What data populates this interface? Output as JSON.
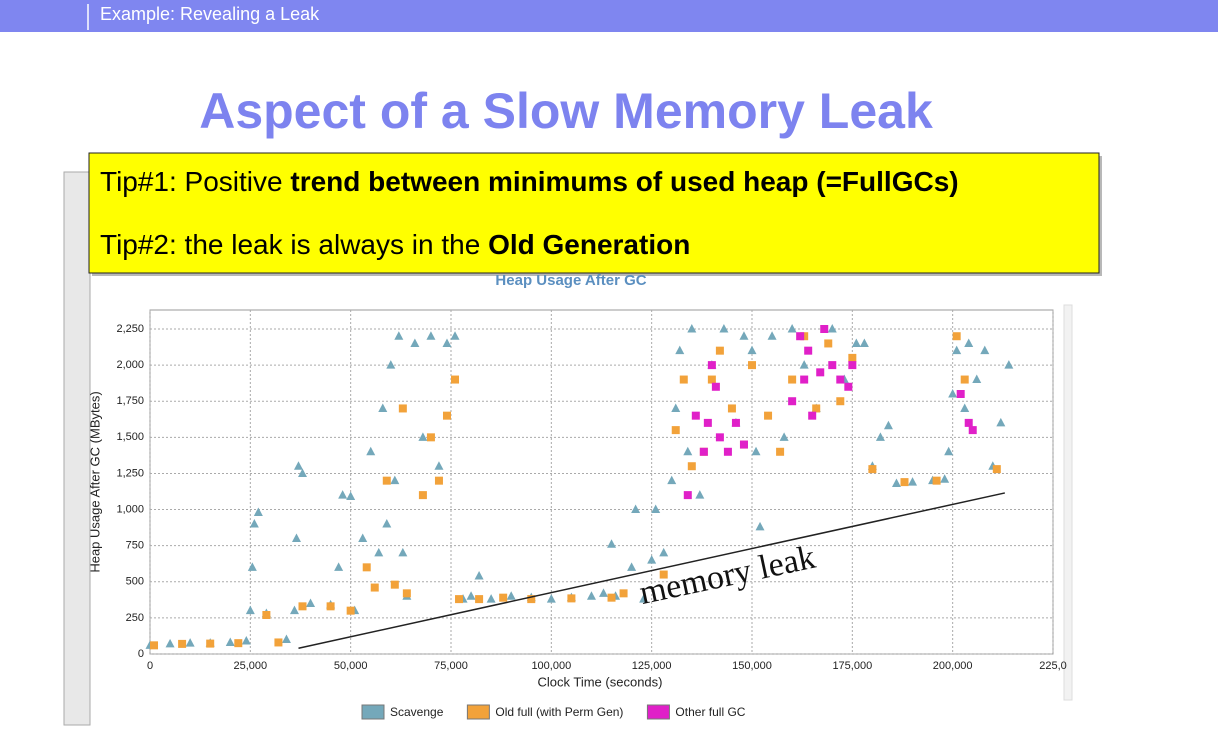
{
  "header": {
    "title": "Example: Revealing a Leak"
  },
  "slide_title": "Aspect of a Slow Memory Leak",
  "tips": [
    [
      {
        "text": "Tip#1: Positive ",
        "bold": false
      },
      {
        "text": "trend between minimums of used heap (=FullGCs)",
        "bold": true
      }
    ],
    [
      {
        "text": "Tip#2: the leak is always in the ",
        "bold": false
      },
      {
        "text": "Old Generation",
        "bold": true
      }
    ]
  ],
  "chart_data": {
    "type": "scatter",
    "title": "Heap Usage After GC",
    "x_label": "Clock Time (seconds)",
    "y_label": "Heap Usage After GC (MBytes)",
    "xlim": [
      0,
      225000
    ],
    "ylim": [
      0,
      2250
    ],
    "xticks": [
      0,
      {
        "value": 25000,
        "label": "25,000"
      },
      {
        "value": 50000,
        "label": "50,000"
      },
      {
        "value": 75000,
        "label": "75,000"
      },
      {
        "value": 100000,
        "label": "100,000"
      },
      {
        "value": 125000,
        "label": "125,000"
      },
      {
        "value": 150000,
        "label": "150,000"
      },
      {
        "value": 175000,
        "label": "175,000"
      },
      {
        "value": 200000,
        "label": "200,000"
      },
      {
        "value": 225000,
        "label": "225,0"
      }
    ],
    "yticks": [
      0,
      250,
      500,
      750,
      {
        "value": 1000,
        "label": "1,000"
      },
      {
        "value": 1250,
        "label": "1,250"
      },
      {
        "value": 1500,
        "label": "1,500"
      },
      {
        "value": 1750,
        "label": "1,750"
      },
      {
        "value": 2000,
        "label": "2,000"
      },
      {
        "value": 2250,
        "label": "2,250"
      }
    ],
    "grid": true,
    "legend": "bottom",
    "series": [
      {
        "name": "Scavenge",
        "color": "#74a8ba",
        "marker": "triangle",
        "x": [
          0,
          5000,
          10000,
          15000,
          20000,
          24000,
          25000,
          25500,
          26000,
          27000,
          29000,
          34000,
          36000,
          36500,
          37000,
          38000,
          40000,
          45000,
          47000,
          48000,
          50000,
          51000,
          53000,
          55000,
          57000,
          58000,
          59000,
          60000,
          61000,
          62000,
          63000,
          64000,
          66000,
          68000,
          70000,
          72000,
          74000,
          76000,
          78000,
          80000,
          82000,
          85000,
          90000,
          95000,
          100000,
          105000,
          110000,
          113000,
          115000,
          116000,
          120000,
          121000,
          123000,
          125000,
          126000,
          128000,
          130000,
          131000,
          132000,
          134000,
          135000,
          137000,
          140000,
          143000,
          146000,
          148000,
          150000,
          151000,
          152000,
          155000,
          158000,
          160000,
          163000,
          166000,
          170000,
          173000,
          176000,
          178000,
          180000,
          182000,
          184000,
          186000,
          190000,
          195000,
          198000,
          199000,
          200000,
          201000,
          203000,
          204000,
          206000,
          208000,
          210000,
          212000,
          214000
        ],
        "values": [
          60,
          70,
          75,
          75,
          80,
          90,
          300,
          600,
          900,
          980,
          280,
          100,
          300,
          800,
          1300,
          1250,
          350,
          340,
          600,
          1100,
          1090,
          300,
          800,
          1400,
          700,
          1700,
          900,
          2000,
          1200,
          2200,
          700,
          400,
          2150,
          1500,
          2200,
          1300,
          2150,
          2200,
          380,
          400,
          540,
          380,
          400,
          390,
          380,
          390,
          400,
          420,
          760,
          400,
          600,
          1000,
          380,
          650,
          1000,
          700,
          1200,
          1700,
          2100,
          1400,
          2250,
          1100,
          2000,
          2250,
          1600,
          2200,
          2100,
          1400,
          880,
          2200,
          1500,
          2250,
          2000,
          1700,
          2250,
          1900,
          2150,
          2150,
          1300,
          1500,
          1580,
          1180,
          1190,
          1200,
          1210,
          1400,
          1800,
          2100,
          1700,
          2150,
          1900,
          2100,
          1300,
          1600,
          2000
        ]
      },
      {
        "name": "Old full (with Perm Gen)",
        "color": "#f2a23a",
        "marker": "square",
        "x": [
          1000,
          8000,
          15000,
          22000,
          29000,
          32000,
          38000,
          45000,
          50000,
          54000,
          56000,
          59000,
          61000,
          63000,
          64000,
          68000,
          70000,
          72000,
          74000,
          76000,
          77000,
          82000,
          88000,
          95000,
          105000,
          115000,
          118000,
          128000,
          131000,
          133000,
          135000,
          138000,
          140000,
          142000,
          145000,
          148000,
          150000,
          154000,
          157000,
          160000,
          163000,
          166000,
          169000,
          172000,
          175000,
          180000,
          188000,
          196000,
          201000,
          203000,
          211000
        ],
        "values": [
          60,
          70,
          72,
          75,
          270,
          80,
          330,
          330,
          300,
          600,
          460,
          1200,
          480,
          1700,
          420,
          1100,
          1500,
          1200,
          1650,
          1900,
          380,
          380,
          390,
          380,
          385,
          390,
          420,
          550,
          1550,
          1900,
          1300,
          1400,
          1900,
          2100,
          1700,
          1450,
          2000,
          1650,
          1400,
          1900,
          2200,
          1700,
          2150,
          1750,
          2050,
          1280,
          1190,
          1200,
          2200,
          1900,
          1280
        ]
      },
      {
        "name": "Other full GC",
        "color": "#e020c8",
        "marker": "square",
        "x": [
          134000,
          136000,
          138000,
          139000,
          140000,
          141000,
          142000,
          144000,
          146000,
          148000,
          160000,
          162000,
          163000,
          164000,
          165000,
          167000,
          168000,
          170000,
          172000,
          174000,
          175000,
          202000,
          204000,
          205000
        ],
        "values": [
          1100,
          1650,
          1400,
          1600,
          2000,
          1850,
          1500,
          1400,
          1600,
          1450,
          1750,
          2200,
          1900,
          2100,
          1650,
          1950,
          2250,
          2000,
          1900,
          1850,
          2000,
          1800,
          1600,
          1550
        ]
      }
    ],
    "annotation": {
      "text": "memory leak",
      "x": [
        37000,
        213000
      ],
      "y": [
        40,
        1115
      ]
    }
  }
}
